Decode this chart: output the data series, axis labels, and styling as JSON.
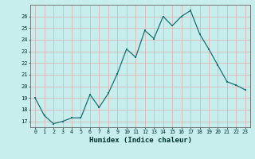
{
  "x": [
    0,
    1,
    2,
    3,
    4,
    5,
    6,
    7,
    8,
    9,
    10,
    11,
    12,
    13,
    14,
    15,
    16,
    17,
    18,
    19,
    20,
    21,
    22,
    23
  ],
  "y": [
    19,
    17.5,
    16.8,
    17.0,
    17.3,
    17.3,
    19.3,
    18.2,
    19.4,
    21.1,
    23.2,
    22.5,
    24.8,
    24.1,
    26.0,
    25.2,
    26.0,
    26.5,
    24.5,
    23.2,
    21.8,
    20.4,
    20.1,
    19.7
  ],
  "xlabel": "Humidex (Indice chaleur)",
  "xlim": [
    -0.5,
    23.5
  ],
  "ylim": [
    16.5,
    27
  ],
  "yticks": [
    17,
    18,
    19,
    20,
    21,
    22,
    23,
    24,
    25,
    26
  ],
  "xticks": [
    0,
    1,
    2,
    3,
    4,
    5,
    6,
    7,
    8,
    9,
    10,
    11,
    12,
    13,
    14,
    15,
    16,
    17,
    18,
    19,
    20,
    21,
    22,
    23
  ],
  "bg_color": "#c8eded",
  "grid_color": "#dbb8b8",
  "line_color": "#1a7070",
  "marker_color": "#1a7070",
  "font_color": "#003333",
  "spine_color": "#666666"
}
